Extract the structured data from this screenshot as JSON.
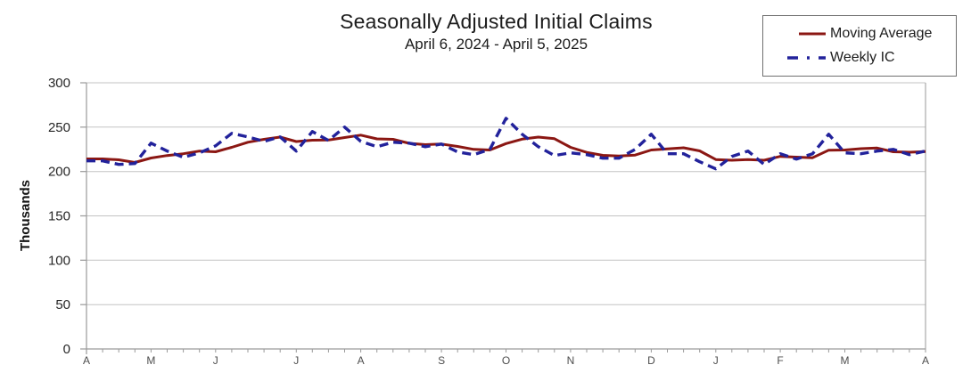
{
  "chart_data": {
    "type": "line",
    "title": "Seasonally Adjusted Initial Claims",
    "subtitle": "April 6, 2024 - April 5, 2025",
    "ylabel": "Thousands",
    "ylim": [
      0,
      300
    ],
    "y_ticks": [
      0,
      50,
      100,
      150,
      200,
      250,
      300
    ],
    "x_tick_labels": [
      "A",
      "M",
      "J",
      "J",
      "A",
      "S",
      "O",
      "N",
      "D",
      "J",
      "F",
      "M",
      "A"
    ],
    "x_month_tick_weeks": [
      0,
      4,
      8,
      13,
      17,
      22,
      26,
      30,
      35,
      39,
      43,
      47,
      52
    ],
    "weeks_total": 53,
    "grid": "horizontal-only",
    "legend_position": "top-right",
    "colors": {
      "grid": "#c3c3c3",
      "axis": "#9a9a9a",
      "tick_text": "#4d4d4d",
      "text": "#262626",
      "background": "#ffffff"
    },
    "series": [
      {
        "name": "Moving Average",
        "data_name": "moving-average-line",
        "color": "#8b1713",
        "style": "solid",
        "width": 3,
        "values": [
          214.25,
          214.25,
          213.25,
          210.25,
          215.25,
          218,
          220,
          223,
          222.25,
          227.25,
          233,
          236.25,
          238.75,
          233.75,
          235.25,
          235.5,
          238.25,
          241,
          236.75,
          236.25,
          231.75,
          230.25,
          231,
          228.25,
          225,
          224.25,
          231.5,
          236.5,
          238.75,
          237,
          227.25,
          221.5,
          218.25,
          217.5,
          218.5,
          224.25,
          225.5,
          226.75,
          223.25,
          213.5,
          212.75,
          213.5,
          212.75,
          217,
          216.25,
          215.5,
          224,
          224.25,
          225.75,
          226.5,
          222.25,
          221.75,
          222.5
        ]
      },
      {
        "name": "Weekly IC",
        "data_name": "weekly-ic-line",
        "color": "#22229b",
        "style": "dashed",
        "dash": "10 6",
        "width": 3.4,
        "values": [
          212,
          212,
          208,
          209,
          232,
          223,
          216,
          221,
          229,
          243,
          239,
          234,
          239,
          223,
          245,
          235,
          250,
          234,
          228,
          233,
          232,
          228,
          231,
          222,
          219,
          225,
          260,
          242,
          228,
          218,
          221,
          219,
          215,
          215,
          225,
          242,
          220,
          220,
          211,
          203,
          217,
          223,
          208,
          220,
          214,
          220,
          242,
          221,
          220,
          223,
          225,
          219,
          223
        ]
      }
    ]
  }
}
